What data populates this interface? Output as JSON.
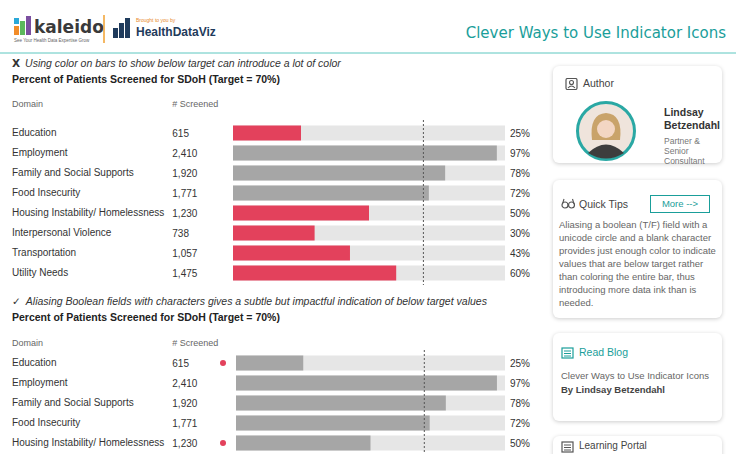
{
  "header": {
    "logo": "kaleido",
    "logo_tagline": "See Your Health Data Expertise Grow",
    "partner_tagline": "Brought to you by",
    "partner": "HealthDataViz",
    "title": "Clever Ways to Use Indicator Icons"
  },
  "chart_data": [
    {
      "type": "bar",
      "orientation": "horizontal",
      "subtitle_icon": "X",
      "subtitle": "Using color on bars to show below target can introduce a lot of color",
      "title": "Percent of Patients Screened for SDoH (Target = 70%)",
      "column_headers": [
        "Domain",
        "# Screened"
      ],
      "categories": [
        "Education",
        "Employment",
        "Family and Social Supports",
        "Food Insecurity",
        "Housing Instability/ Homelessness",
        "Interpersonal Violence",
        "Transportation",
        "Utility Needs"
      ],
      "screened": [
        "615",
        "2,410",
        "1,920",
        "1,771",
        "1,230",
        "738",
        "1,057",
        "1,475"
      ],
      "values": [
        25,
        97,
        78,
        72,
        50,
        30,
        43,
        60
      ],
      "value_labels": [
        "25%",
        "97%",
        "78%",
        "72%",
        "50%",
        "30%",
        "43%",
        "60%"
      ],
      "colors": [
        "#e3415c",
        "#a6a6a6",
        "#a6a6a6",
        "#a6a6a6",
        "#e3415c",
        "#e3415c",
        "#e3415c",
        "#e3415c"
      ],
      "target": 70,
      "xlim": [
        0,
        100
      ],
      "data_labels": true,
      "tick_labels": false
    },
    {
      "type": "bar",
      "orientation": "horizontal",
      "subtitle_icon": "✓",
      "subtitle": "Aliasing Boolean fields with characters gives a subtle but impactful indication of below target values",
      "title": "Percent of Patients Screened for SDoH (Target = 70%)",
      "column_headers": [
        "Domain",
        "# Screened"
      ],
      "categories": [
        "Education",
        "Employment",
        "Family and Social Supports",
        "Food Insecurity",
        "Housing Instability/ Homelessness"
      ],
      "screened": [
        "615",
        "2,410",
        "1,920",
        "1,771",
        "1,230"
      ],
      "values": [
        25,
        97,
        78,
        72,
        50
      ],
      "value_labels": [
        "25%",
        "97%",
        "78%",
        "72%",
        "50%"
      ],
      "color": "#a6a6a6",
      "marker": "circle",
      "target": 70,
      "xlim": [
        0,
        100
      ],
      "data_labels": true,
      "tick_labels": false
    }
  ],
  "sidebar": {
    "author": {
      "heading": "Author",
      "name": "Lindsay Betzendahl",
      "role": "Partner & Senior Consultant"
    },
    "quick_tips": {
      "heading": "Quick Tips",
      "button": "More -->",
      "text": "Aliasing a boolean (T/F) field with a unicode circle and a blank character provides just enough color to indicate values that are below target rather than coloring the entire bar, thus introducing more data ink than is needed."
    },
    "blog": {
      "heading": "Read Blog",
      "title": "Clever Ways to Use Indicator Icons",
      "byline": "By Lindsay Betzendahl"
    },
    "learning_portal": {
      "heading": "Learning Portal"
    }
  }
}
